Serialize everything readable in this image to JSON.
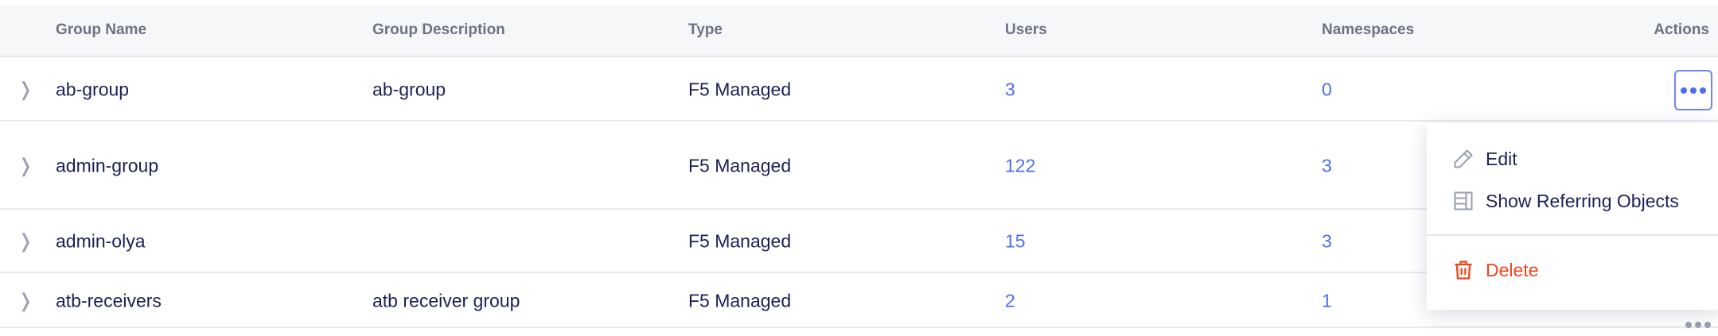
{
  "table": {
    "headers": {
      "name": "Group Name",
      "description": "Group Description",
      "type": "Type",
      "users": "Users",
      "namespaces": "Namespaces",
      "actions": "Actions"
    },
    "rows": [
      {
        "name": "ab-group",
        "description": "ab-group",
        "type": "F5 Managed",
        "users": "3",
        "namespaces": "0"
      },
      {
        "name": "admin-group",
        "description": "",
        "type": "F5 Managed",
        "users": "122",
        "namespaces": "3"
      },
      {
        "name": "admin-olya",
        "description": "",
        "type": "F5 Managed",
        "users": "15",
        "namespaces": "3"
      },
      {
        "name": "atb-receivers",
        "description": "atb receiver group",
        "type": "F5 Managed",
        "users": "2",
        "namespaces": "1"
      }
    ]
  },
  "menu": {
    "edit": "Edit",
    "show_referring": "Show Referring Objects",
    "delete": "Delete"
  },
  "colors": {
    "text": "#1b2157",
    "link": "#4d6ef0",
    "danger": "#f0441e",
    "header_bg": "#f6f7f9"
  }
}
